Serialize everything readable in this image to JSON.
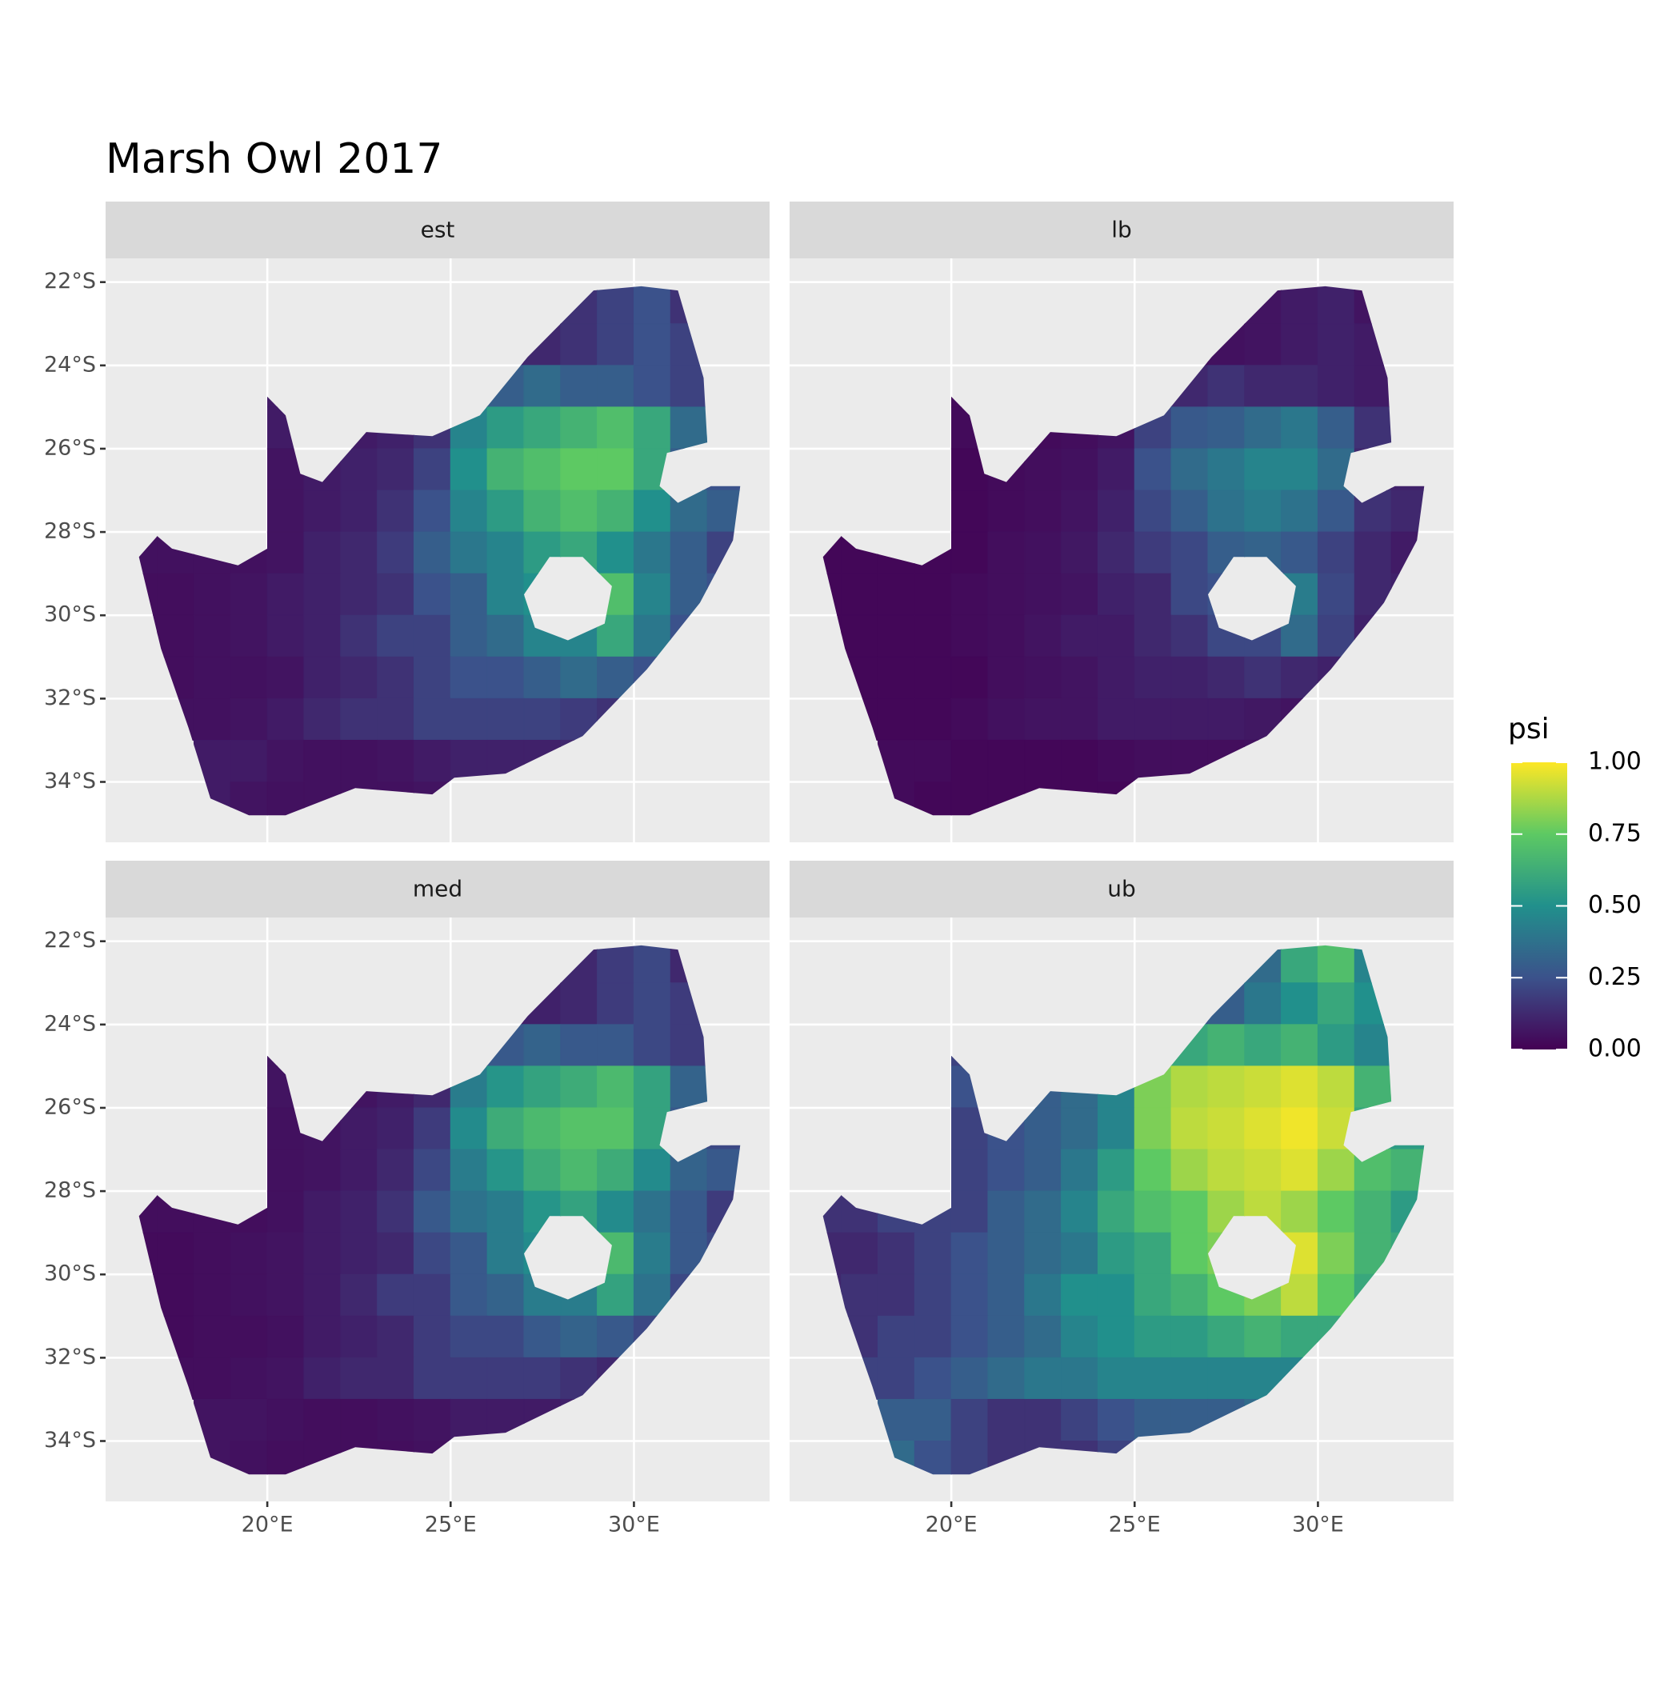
{
  "chart_data": {
    "type": "raster",
    "title": "Marsh Owl 2017",
    "lon": [
      16.5,
      17.5,
      18.5,
      19.5,
      20.5,
      21.5,
      22.5,
      23.5,
      24.5,
      25.5,
      26.5,
      27.5,
      28.5,
      29.5,
      30.5,
      31.5,
      32.5
    ],
    "lat": [
      -22.5,
      -23.5,
      -24.5,
      -25.5,
      -26.5,
      -27.5,
      -28.5,
      -29.5,
      -30.5,
      -31.5,
      -32.5,
      -33.5,
      -34.5
    ],
    "xlim": [
      15.59,
      33.7
    ],
    "ylim": [
      -35.45,
      -21.43
    ],
    "xticks": [
      {
        "value": 20,
        "label": "20°E"
      },
      {
        "value": 25,
        "label": "25°E"
      },
      {
        "value": 30,
        "label": "30°E"
      }
    ],
    "yticks": [
      {
        "value": -22,
        "label": "22°S"
      },
      {
        "value": -24,
        "label": "24°S"
      },
      {
        "value": -26,
        "label": "26°S"
      },
      {
        "value": -28,
        "label": "28°S"
      },
      {
        "value": -30,
        "label": "30°S"
      },
      {
        "value": -32,
        "label": "32°S"
      },
      {
        "value": -34,
        "label": "34°S"
      }
    ],
    "grid": true,
    "colormap": [
      "#440154",
      "#3b528b",
      "#21908c",
      "#5dc963",
      "#fde725"
    ],
    "legend": {
      "title": "psi",
      "clim": [
        0,
        1
      ],
      "ticks": [
        {
          "value": 0,
          "label": "0.00"
        },
        {
          "value": 0.25,
          "label": "0.25"
        },
        {
          "value": 0.5,
          "label": "0.50"
        },
        {
          "value": 0.75,
          "label": "0.75"
        },
        {
          "value": 1,
          "label": "1.00"
        }
      ]
    },
    "facets": [
      {
        "name": "est",
        "values": [
          [
            null,
            null,
            null,
            null,
            null,
            null,
            null,
            null,
            null,
            null,
            null,
            0.12,
            0.15,
            0.2,
            0.25,
            0.15,
            null
          ],
          [
            null,
            null,
            null,
            null,
            null,
            null,
            null,
            null,
            null,
            null,
            0.1,
            0.12,
            0.15,
            0.2,
            0.25,
            0.2,
            null
          ],
          [
            null,
            null,
            null,
            null,
            0.08,
            null,
            null,
            null,
            null,
            0.25,
            0.3,
            0.35,
            0.3,
            0.3,
            0.25,
            0.2,
            null
          ],
          [
            null,
            null,
            null,
            null,
            0.08,
            null,
            0.08,
            0.1,
            0.15,
            0.45,
            0.55,
            0.6,
            0.65,
            0.7,
            0.6,
            0.35,
            null
          ],
          [
            null,
            null,
            null,
            null,
            0.06,
            0.08,
            0.1,
            0.12,
            0.2,
            0.5,
            0.65,
            0.7,
            0.75,
            0.75,
            0.6,
            0.3,
            0.25
          ],
          [
            null,
            null,
            null,
            null,
            0.06,
            0.08,
            0.1,
            0.15,
            0.25,
            0.45,
            0.55,
            0.65,
            0.7,
            0.65,
            0.5,
            0.35,
            0.3
          ],
          [
            0.05,
            0.05,
            0.05,
            0.05,
            0.06,
            0.1,
            0.12,
            0.18,
            0.3,
            0.4,
            0.45,
            0.55,
            0.6,
            0.5,
            0.4,
            0.3,
            0.2
          ],
          [
            0.04,
            0.04,
            0.05,
            0.06,
            0.08,
            0.1,
            0.12,
            0.15,
            0.25,
            0.3,
            0.45,
            0.5,
            0.4,
            0.7,
            0.45,
            0.3,
            0.25
          ],
          [
            0.04,
            0.04,
            0.05,
            0.06,
            0.08,
            0.1,
            0.15,
            0.2,
            0.2,
            0.3,
            0.35,
            0.45,
            0.45,
            0.6,
            0.4,
            0.25,
            null
          ],
          [
            null,
            0.04,
            0.05,
            0.05,
            0.06,
            0.1,
            0.12,
            0.15,
            0.2,
            0.25,
            0.25,
            0.3,
            0.35,
            0.3,
            0.25,
            null,
            null
          ],
          [
            null,
            0.05,
            0.05,
            0.06,
            0.08,
            0.12,
            0.15,
            0.15,
            0.2,
            0.2,
            0.2,
            0.2,
            0.18,
            0.15,
            0.15,
            null,
            null
          ],
          [
            null,
            null,
            0.08,
            0.08,
            0.06,
            0.05,
            0.05,
            0.06,
            0.08,
            0.1,
            0.1,
            0.1,
            0.12,
            0.1,
            null,
            null,
            null
          ],
          [
            null,
            null,
            0.08,
            0.06,
            0.05,
            0.05,
            0.05,
            0.05,
            0.06,
            null,
            null,
            null,
            null,
            null,
            null,
            null,
            null
          ]
        ]
      },
      {
        "name": "lb",
        "values": [
          [
            null,
            null,
            null,
            null,
            null,
            null,
            null,
            null,
            null,
            null,
            null,
            0.05,
            0.06,
            0.08,
            0.1,
            0.06,
            null
          ],
          [
            null,
            null,
            null,
            null,
            null,
            null,
            null,
            null,
            null,
            null,
            0.04,
            0.05,
            0.06,
            0.08,
            0.1,
            0.08,
            null
          ],
          [
            null,
            null,
            null,
            null,
            0.03,
            null,
            null,
            null,
            null,
            0.1,
            0.12,
            0.15,
            0.12,
            0.12,
            0.1,
            0.08,
            null
          ],
          [
            null,
            null,
            null,
            null,
            0.03,
            null,
            0.03,
            0.04,
            0.06,
            0.2,
            0.28,
            0.3,
            0.35,
            0.4,
            0.3,
            0.15,
            null
          ],
          [
            null,
            null,
            null,
            null,
            0.02,
            0.03,
            0.04,
            0.05,
            0.08,
            0.25,
            0.35,
            0.4,
            0.45,
            0.45,
            0.35,
            0.12,
            0.1
          ],
          [
            null,
            null,
            null,
            null,
            0.02,
            0.03,
            0.04,
            0.06,
            0.1,
            0.22,
            0.3,
            0.38,
            0.42,
            0.38,
            0.28,
            0.15,
            0.12
          ],
          [
            0.02,
            0.02,
            0.02,
            0.02,
            0.02,
            0.04,
            0.05,
            0.07,
            0.12,
            0.18,
            0.22,
            0.3,
            0.32,
            0.28,
            0.2,
            0.12,
            0.08
          ],
          [
            0.02,
            0.02,
            0.02,
            0.02,
            0.03,
            0.04,
            0.05,
            0.06,
            0.1,
            0.12,
            0.22,
            0.25,
            0.2,
            0.42,
            0.22,
            0.12,
            0.1
          ],
          [
            0.02,
            0.02,
            0.02,
            0.02,
            0.03,
            0.04,
            0.06,
            0.08,
            0.08,
            0.12,
            0.15,
            0.22,
            0.22,
            0.35,
            0.2,
            0.1,
            null
          ],
          [
            null,
            0.02,
            0.02,
            0.02,
            0.02,
            0.04,
            0.05,
            0.06,
            0.08,
            0.1,
            0.1,
            0.12,
            0.15,
            0.12,
            0.1,
            null,
            null
          ],
          [
            null,
            0.02,
            0.02,
            0.02,
            0.03,
            0.05,
            0.06,
            0.06,
            0.08,
            0.08,
            0.08,
            0.08,
            0.07,
            0.06,
            0.06,
            null,
            null
          ],
          [
            null,
            null,
            0.03,
            0.03,
            0.02,
            0.02,
            0.02,
            0.02,
            0.03,
            0.04,
            0.04,
            0.04,
            0.05,
            0.04,
            null,
            null,
            null
          ],
          [
            null,
            null,
            0.03,
            0.02,
            0.02,
            0.02,
            0.02,
            0.02,
            0.02,
            null,
            null,
            null,
            null,
            null,
            null,
            null,
            null
          ]
        ]
      },
      {
        "name": "med",
        "values": [
          [
            null,
            null,
            null,
            null,
            null,
            null,
            null,
            null,
            null,
            null,
            null,
            0.1,
            0.12,
            0.18,
            0.22,
            0.12,
            null
          ],
          [
            null,
            null,
            null,
            null,
            null,
            null,
            null,
            null,
            null,
            null,
            0.08,
            0.1,
            0.12,
            0.18,
            0.22,
            0.18,
            null
          ],
          [
            null,
            null,
            null,
            null,
            0.06,
            null,
            null,
            null,
            null,
            0.22,
            0.28,
            0.32,
            0.28,
            0.28,
            0.22,
            0.18,
            null
          ],
          [
            null,
            null,
            null,
            null,
            0.06,
            null,
            0.06,
            0.08,
            0.12,
            0.42,
            0.52,
            0.58,
            0.62,
            0.68,
            0.58,
            0.32,
            null
          ],
          [
            null,
            null,
            null,
            null,
            0.05,
            0.06,
            0.08,
            0.1,
            0.18,
            0.48,
            0.62,
            0.68,
            0.72,
            0.72,
            0.58,
            0.28,
            0.22
          ],
          [
            null,
            null,
            null,
            null,
            0.05,
            0.06,
            0.08,
            0.12,
            0.22,
            0.42,
            0.52,
            0.62,
            0.68,
            0.62,
            0.48,
            0.32,
            0.28
          ],
          [
            0.04,
            0.04,
            0.04,
            0.04,
            0.05,
            0.08,
            0.1,
            0.15,
            0.28,
            0.38,
            0.42,
            0.52,
            0.58,
            0.48,
            0.38,
            0.28,
            0.18
          ],
          [
            0.03,
            0.03,
            0.04,
            0.05,
            0.06,
            0.08,
            0.1,
            0.12,
            0.22,
            0.28,
            0.42,
            0.48,
            0.38,
            0.68,
            0.42,
            0.28,
            0.22
          ],
          [
            0.03,
            0.03,
            0.04,
            0.05,
            0.06,
            0.08,
            0.12,
            0.18,
            0.18,
            0.28,
            0.32,
            0.42,
            0.42,
            0.58,
            0.38,
            0.22,
            null
          ],
          [
            null,
            0.03,
            0.04,
            0.04,
            0.05,
            0.08,
            0.1,
            0.12,
            0.18,
            0.22,
            0.22,
            0.28,
            0.32,
            0.28,
            0.22,
            null,
            null
          ],
          [
            null,
            0.04,
            0.04,
            0.05,
            0.06,
            0.1,
            0.12,
            0.12,
            0.18,
            0.18,
            0.18,
            0.18,
            0.15,
            0.12,
            0.12,
            null,
            null
          ],
          [
            null,
            null,
            0.06,
            0.06,
            0.05,
            0.04,
            0.04,
            0.05,
            0.06,
            0.08,
            0.08,
            0.08,
            0.1,
            0.08,
            null,
            null,
            null
          ],
          [
            null,
            null,
            0.06,
            0.05,
            0.04,
            0.04,
            0.04,
            0.04,
            0.05,
            null,
            null,
            null,
            null,
            null,
            null,
            null,
            null
          ]
        ]
      },
      {
        "name": "ub",
        "values": [
          [
            null,
            null,
            null,
            null,
            null,
            null,
            null,
            null,
            null,
            null,
            null,
            0.3,
            0.35,
            0.6,
            0.7,
            0.45,
            null
          ],
          [
            null,
            null,
            null,
            null,
            null,
            null,
            null,
            null,
            null,
            null,
            0.25,
            0.3,
            0.4,
            0.5,
            0.6,
            0.5,
            null
          ],
          [
            null,
            null,
            null,
            null,
            0.2,
            null,
            null,
            null,
            null,
            0.5,
            0.6,
            0.65,
            0.6,
            0.65,
            0.55,
            0.45,
            null
          ],
          [
            null,
            null,
            null,
            null,
            0.25,
            null,
            0.3,
            0.35,
            0.45,
            0.8,
            0.88,
            0.9,
            0.92,
            0.95,
            0.9,
            0.65,
            null
          ],
          [
            null,
            null,
            null,
            null,
            0.2,
            0.25,
            0.3,
            0.35,
            0.45,
            0.8,
            0.9,
            0.92,
            0.95,
            0.98,
            0.92,
            0.6,
            0.55
          ],
          [
            null,
            null,
            null,
            null,
            0.2,
            0.25,
            0.3,
            0.4,
            0.55,
            0.75,
            0.85,
            0.9,
            0.92,
            0.95,
            0.85,
            0.7,
            0.65
          ],
          [
            0.15,
            0.15,
            0.2,
            0.2,
            0.2,
            0.3,
            0.35,
            0.45,
            0.6,
            0.7,
            0.75,
            0.85,
            0.9,
            0.85,
            0.75,
            0.65,
            0.55
          ],
          [
            0.12,
            0.12,
            0.15,
            0.2,
            0.25,
            0.3,
            0.35,
            0.4,
            0.55,
            0.6,
            0.75,
            0.8,
            0.75,
            0.95,
            0.8,
            0.65,
            0.6
          ],
          [
            0.12,
            0.15,
            0.15,
            0.2,
            0.25,
            0.3,
            0.4,
            0.5,
            0.5,
            0.6,
            0.65,
            0.75,
            0.8,
            0.9,
            0.75,
            0.6,
            null
          ],
          [
            null,
            0.15,
            0.2,
            0.2,
            0.25,
            0.3,
            0.35,
            0.45,
            0.5,
            0.55,
            0.55,
            0.6,
            0.65,
            0.6,
            0.6,
            null,
            null
          ],
          [
            null,
            0.2,
            0.2,
            0.25,
            0.3,
            0.35,
            0.4,
            0.4,
            0.45,
            0.45,
            0.45,
            0.45,
            0.45,
            0.45,
            0.5,
            null,
            null
          ],
          [
            null,
            null,
            0.3,
            0.3,
            0.2,
            0.15,
            0.15,
            0.2,
            0.25,
            0.3,
            0.3,
            0.3,
            0.35,
            0.4,
            null,
            null,
            null
          ],
          [
            null,
            null,
            0.35,
            0.25,
            0.2,
            0.15,
            0.15,
            0.15,
            0.2,
            null,
            null,
            null,
            null,
            null,
            null,
            null,
            null
          ]
        ]
      }
    ]
  }
}
